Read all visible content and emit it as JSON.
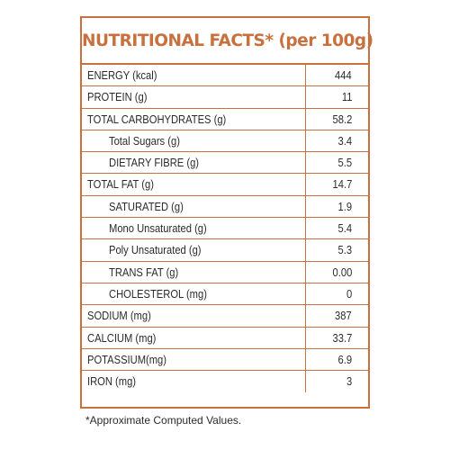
{
  "panel": {
    "title": "NUTRITIONAL FACTS* (per 100g)",
    "border_color": "#c8703e",
    "rows": [
      {
        "label": "ENERGY (kcal)",
        "value": "444",
        "indent": 0
      },
      {
        "label": "PROTEIN (g)",
        "value": "11",
        "indent": 0
      },
      {
        "label": "TOTAL CARBOHYDRATES (g)",
        "value": "58.2",
        "indent": 0
      },
      {
        "label": "Total Sugars (g)",
        "value": "3.4",
        "indent": 1
      },
      {
        "label": "DIETARY FIBRE (g)",
        "value": "5.5",
        "indent": 1
      },
      {
        "label": "TOTAL FAT (g)",
        "value": "14.7",
        "indent": 0
      },
      {
        "label": "SATURATED (g)",
        "value": "1.9",
        "indent": 1
      },
      {
        "label": "Mono Unsaturated (g)",
        "value": "5.4",
        "indent": 1
      },
      {
        "label": "Poly Unsaturated (g)",
        "value": "5.3",
        "indent": 1
      },
      {
        "label": "TRANS FAT (g)",
        "value": "0.00",
        "indent": 1
      },
      {
        "label": "CHOLESTEROL (mg)",
        "value": "0",
        "indent": 1
      },
      {
        "label": "SODIUM (mg)",
        "value": "387",
        "indent": 0
      },
      {
        "label": "CALCIUM (mg)",
        "value": "33.7",
        "indent": 0
      },
      {
        "label": "POTASSIUM(mg)",
        "value": "6.9",
        "indent": 0
      },
      {
        "label": "IRON (mg)",
        "value": "3",
        "indent": 0
      }
    ]
  },
  "footnote": "*Approximate Computed Values."
}
